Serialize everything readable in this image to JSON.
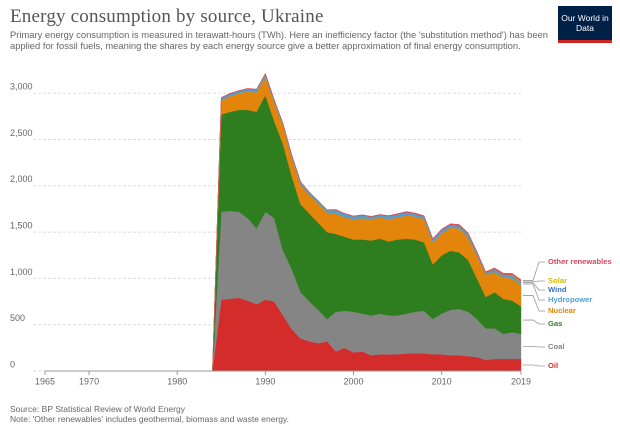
{
  "chart_data": {
    "type": "stacked_area",
    "title": "Energy consumption by source, Ukraine",
    "subtitle": "Primary energy consumption is measured in terawatt-hours (TWh). Here an inefficiency factor (the 'substitution method') has been applied for fossil fuels, meaning the shares by each energy source give a better approximation of final energy consumption.",
    "logo": "Our World in Data",
    "source": "Source: BP Statistical Review of World Energy",
    "note": "Note: 'Other renewables' includes geothermal, biomass and waste energy.",
    "x": [
      1965,
      1984,
      1985,
      1986,
      1987,
      1988,
      1989,
      1990,
      1991,
      1992,
      1993,
      1994,
      1995,
      1996,
      1997,
      1998,
      1999,
      2000,
      2001,
      2002,
      2003,
      2004,
      2005,
      2006,
      2007,
      2008,
      2009,
      2010,
      2011,
      2012,
      2013,
      2014,
      2015,
      2016,
      2017,
      2018,
      2019
    ],
    "xlim": [
      1965,
      2019
    ],
    "xticks": [
      1965,
      1970,
      1980,
      1990,
      2000,
      2010,
      2019
    ],
    "ylim": [
      0,
      3100
    ],
    "yticks": [
      0,
      500,
      {
        "value": 1000,
        "label": "1,000"
      },
      {
        "value": 1500,
        "label": "1,500"
      },
      {
        "value": 2000,
        "label": "2,000"
      },
      {
        "value": 2500,
        "label": "2,500"
      },
      {
        "value": 3000,
        "label": "3,000"
      }
    ],
    "grid": true,
    "series": [
      {
        "name": "Oil",
        "color": "#d42b2b",
        "values": [
          0,
          0,
          770,
          780,
          790,
          760,
          720,
          770,
          750,
          600,
          450,
          350,
          320,
          300,
          320,
          210,
          250,
          200,
          210,
          170,
          180,
          180,
          180,
          190,
          190,
          190,
          180,
          180,
          170,
          170,
          160,
          150,
          120,
          130,
          130,
          130,
          130
        ]
      },
      {
        "name": "Coal",
        "color": "#858585",
        "values": [
          0,
          0,
          950,
          950,
          930,
          890,
          820,
          950,
          900,
          700,
          650,
          500,
          430,
          360,
          240,
          430,
          400,
          440,
          410,
          430,
          440,
          420,
          420,
          430,
          450,
          460,
          380,
          440,
          490,
          500,
          480,
          410,
          340,
          330,
          270,
          290,
          270
        ]
      },
      {
        "name": "Gas",
        "color": "#2e7d1f",
        "values": [
          0,
          0,
          1050,
          1070,
          1100,
          1170,
          1260,
          1260,
          1050,
          1150,
          1000,
          950,
          950,
          940,
          940,
          840,
          800,
          780,
          800,
          810,
          810,
          800,
          820,
          810,
          780,
          740,
          590,
          630,
          640,
          610,
          560,
          440,
          340,
          390,
          380,
          340,
          300
        ]
      },
      {
        "name": "Nuclear",
        "color": "#e2850a",
        "values": [
          0,
          0,
          150,
          170,
          180,
          200,
          210,
          200,
          200,
          200,
          200,
          210,
          200,
          210,
          210,
          220,
          210,
          220,
          230,
          230,
          230,
          240,
          240,
          250,
          250,
          250,
          240,
          240,
          250,
          260,
          240,
          250,
          240,
          220,
          230,
          240,
          230
        ]
      },
      {
        "name": "Hydropower",
        "color": "#4f9fd6",
        "values": [
          0,
          0,
          30,
          25,
          25,
          28,
          30,
          30,
          28,
          20,
          28,
          30,
          27,
          25,
          27,
          40,
          38,
          30,
          32,
          25,
          25,
          32,
          33,
          35,
          28,
          30,
          32,
          35,
          30,
          29,
          37,
          23,
          14,
          24,
          24,
          28,
          20
        ]
      },
      {
        "name": "Wind",
        "color": "#3a6fc4",
        "values": [
          0,
          0,
          0,
          0,
          0,
          0,
          0,
          0,
          0,
          0,
          0,
          0,
          0,
          0,
          0,
          0,
          0,
          0,
          0,
          0,
          0,
          0,
          0,
          0,
          0,
          0,
          0,
          0,
          0,
          2,
          2,
          3,
          3,
          3,
          3,
          3,
          6
        ]
      },
      {
        "name": "Solar",
        "color": "#d8b800",
        "values": [
          0,
          0,
          0,
          0,
          0,
          0,
          0,
          0,
          0,
          0,
          0,
          0,
          0,
          0,
          0,
          0,
          0,
          0,
          0,
          0,
          0,
          0,
          0,
          0,
          0,
          0,
          0,
          0,
          1,
          2,
          3,
          4,
          4,
          4,
          5,
          8,
          13
        ]
      },
      {
        "name": "Other renewables",
        "color": "#d94559",
        "values": [
          0,
          0,
          5,
          5,
          5,
          5,
          5,
          5,
          5,
          5,
          5,
          5,
          5,
          5,
          5,
          5,
          5,
          5,
          6,
          6,
          6,
          7,
          7,
          8,
          8,
          8,
          9,
          9,
          10,
          10,
          11,
          12,
          12,
          13,
          14,
          15,
          16
        ]
      }
    ]
  }
}
